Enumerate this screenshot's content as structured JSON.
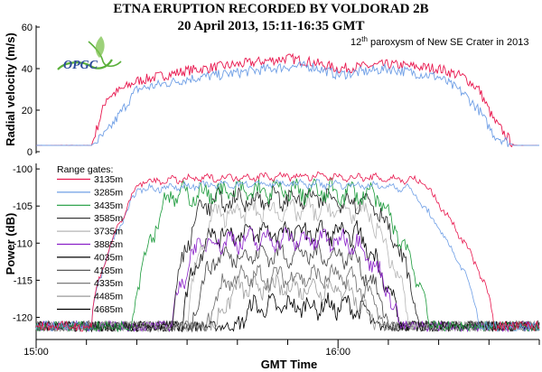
{
  "chart_data": [
    {
      "type": "line",
      "title": "ETNA ERUPTION RECORDED BY VOLDORAD 2B",
      "subtitle": "20 April 2013, 15:11-16:35 GMT",
      "annotation_base": "12",
      "annotation_sup": "th",
      "annotation_rest": " paroxysm of New SE Crater in 2013",
      "logo_text": "OPGC",
      "ylabel": "Radial velocity (m/s)",
      "ylim": [
        0,
        60
      ],
      "yticks": [
        0,
        20,
        40,
        60
      ],
      "xlim": [
        "15:00",
        "16:40"
      ],
      "grid": false,
      "colors": {
        "approaching": "#e8174e",
        "receding": "#6f9fe6"
      },
      "x_minutes": [
        0,
        10,
        11,
        14,
        20,
        30,
        40,
        50,
        55,
        60,
        70,
        80,
        85,
        88,
        91,
        95,
        100
      ],
      "series": [
        {
          "color_key": "approaching",
          "values": [
            3,
            3,
            3,
            26,
            34,
            39,
            42,
            45,
            43,
            40,
            42,
            40,
            36,
            30,
            15,
            3,
            3
          ]
        },
        {
          "color_key": "receding",
          "values": [
            3,
            3,
            3,
            9,
            30,
            35,
            38,
            41,
            41,
            37,
            40,
            36,
            28,
            20,
            8,
            3,
            3
          ]
        }
      ]
    },
    {
      "type": "line",
      "ylabel": "Power (dB)",
      "xlabel": "GMT Time",
      "ylim": [
        -122.5,
        -99.5
      ],
      "yticks": [
        -120,
        -115,
        -110,
        -105,
        -100
      ],
      "xlim": [
        "15:00",
        "16:40"
      ],
      "xticks": [
        "15:00",
        "16:00"
      ],
      "grid": false,
      "legend_title": "Range gates:",
      "legend_position": "top-left",
      "series": [
        {
          "name": "3135m",
          "color": "#e8174e",
          "start": 11,
          "end": 91,
          "peak": -101.0
        },
        {
          "name": "3285m",
          "color": "#6f9fe6",
          "start": 11,
          "end": 88,
          "peak": -102.0
        },
        {
          "name": "3435m",
          "color": "#1a9a3a",
          "start": 19,
          "end": 78,
          "peak": -103.0
        },
        {
          "name": "3585m",
          "color": "#222222",
          "start": 27,
          "end": 76,
          "peak": -104.0
        },
        {
          "name": "3735m",
          "color": "#b5b5b5",
          "start": 30,
          "end": 74,
          "peak": -105.5
        },
        {
          "name": "3885m",
          "color": "#8a21c8",
          "start": 27,
          "end": 72,
          "peak": -109.5
        },
        {
          "name": "4035m",
          "color": "#000000",
          "start": 29,
          "end": 72,
          "peak": -108.5
        },
        {
          "name": "4185m",
          "color": "#444444",
          "start": 31,
          "end": 70,
          "peak": -111.5
        },
        {
          "name": "4335m",
          "color": "#6a6a6a",
          "start": 34,
          "end": 69,
          "peak": -114.5
        },
        {
          "name": "4485m",
          "color": "#9a9a9a",
          "start": 36,
          "end": 67,
          "peak": -116.0
        },
        {
          "name": "4685m",
          "color": "#000000",
          "start": 40,
          "end": 68,
          "peak": -118.5
        }
      ],
      "noise_floor": -121.2
    }
  ]
}
